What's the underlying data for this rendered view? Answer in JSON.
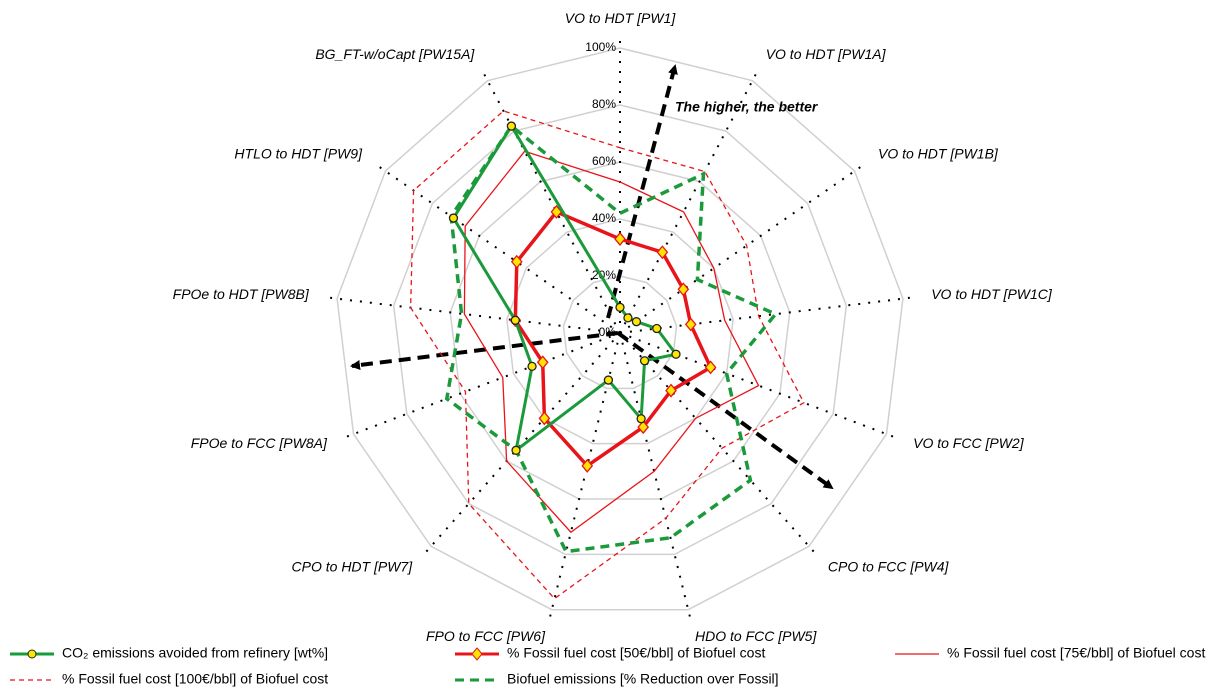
{
  "chart_data": {
    "type": "radar",
    "annotation": "The higher, the better",
    "categories": [
      "VO to HDT [PW1]",
      "VO to HDT [PW1A]",
      "VO to HDT [PW1B]",
      "VO to HDT [PW1C]",
      "VO to FCC [PW2]",
      "CPO to FCC [PW4]",
      "HDO to FCC [PW5]",
      "FPO to FCC [PW6]",
      "CPO to HDT [PW7]",
      "FPOe to FCC [PW8A]",
      "FPOe to HDT [PW8B]",
      "HTLO to HDT [PW9]",
      "BG_FT-w/oCapt [PW15A]"
    ],
    "ylim": [
      0,
      100
    ],
    "yticks": [
      {
        "value": 0,
        "label": "0%"
      },
      {
        "value": 20,
        "label": "20%"
      },
      {
        "value": 40,
        "label": "40%"
      },
      {
        "value": 60,
        "label": "60%"
      },
      {
        "value": 80,
        "label": "80%"
      },
      {
        "value": 100,
        "label": "100%"
      }
    ],
    "grid": true,
    "series": [
      {
        "name": "CO₂ emissions avoided from refinery [wt%]",
        "color": "#1a9a3a",
        "style": "solid-marker-circle",
        "values": [
          9,
          6,
          7,
          13,
          21,
          13,
          31,
          17,
          55,
          33,
          37,
          71,
          82
        ]
      },
      {
        "name": "% Fossil fuel cost [50€/bbl] of Biofuel cost",
        "color": "#e8141a",
        "style": "solid-marker-diamond",
        "values": [
          33,
          32,
          27,
          25,
          34,
          27,
          34,
          48,
          40,
          29,
          37,
          44,
          48
        ]
      },
      {
        "name": "% Fossil fuel cost [75€/bbl] of Biofuel cost",
        "color": "#e8141a",
        "style": "thin",
        "values": [
          53,
          48,
          40,
          37,
          52,
          40,
          50,
          72,
          60,
          44,
          55,
          66,
          72
        ]
      },
      {
        "name": "% Fossil fuel cost [100€/bbl] of Biofuel cost",
        "color": "#e8141a",
        "style": "thin-dashed",
        "values": [
          65,
          64,
          54,
          49,
          69,
          54,
          67,
          96,
          80,
          58,
          74,
          88,
          88
        ]
      },
      {
        "name": "Biofuel emissions [% Reduction over Fossil]",
        "color": "#1a9a3a",
        "style": "thick-dashed",
        "values": [
          42,
          63,
          33,
          55,
          40,
          69,
          74,
          79,
          55,
          65,
          56,
          72,
          82
        ]
      }
    ]
  }
}
